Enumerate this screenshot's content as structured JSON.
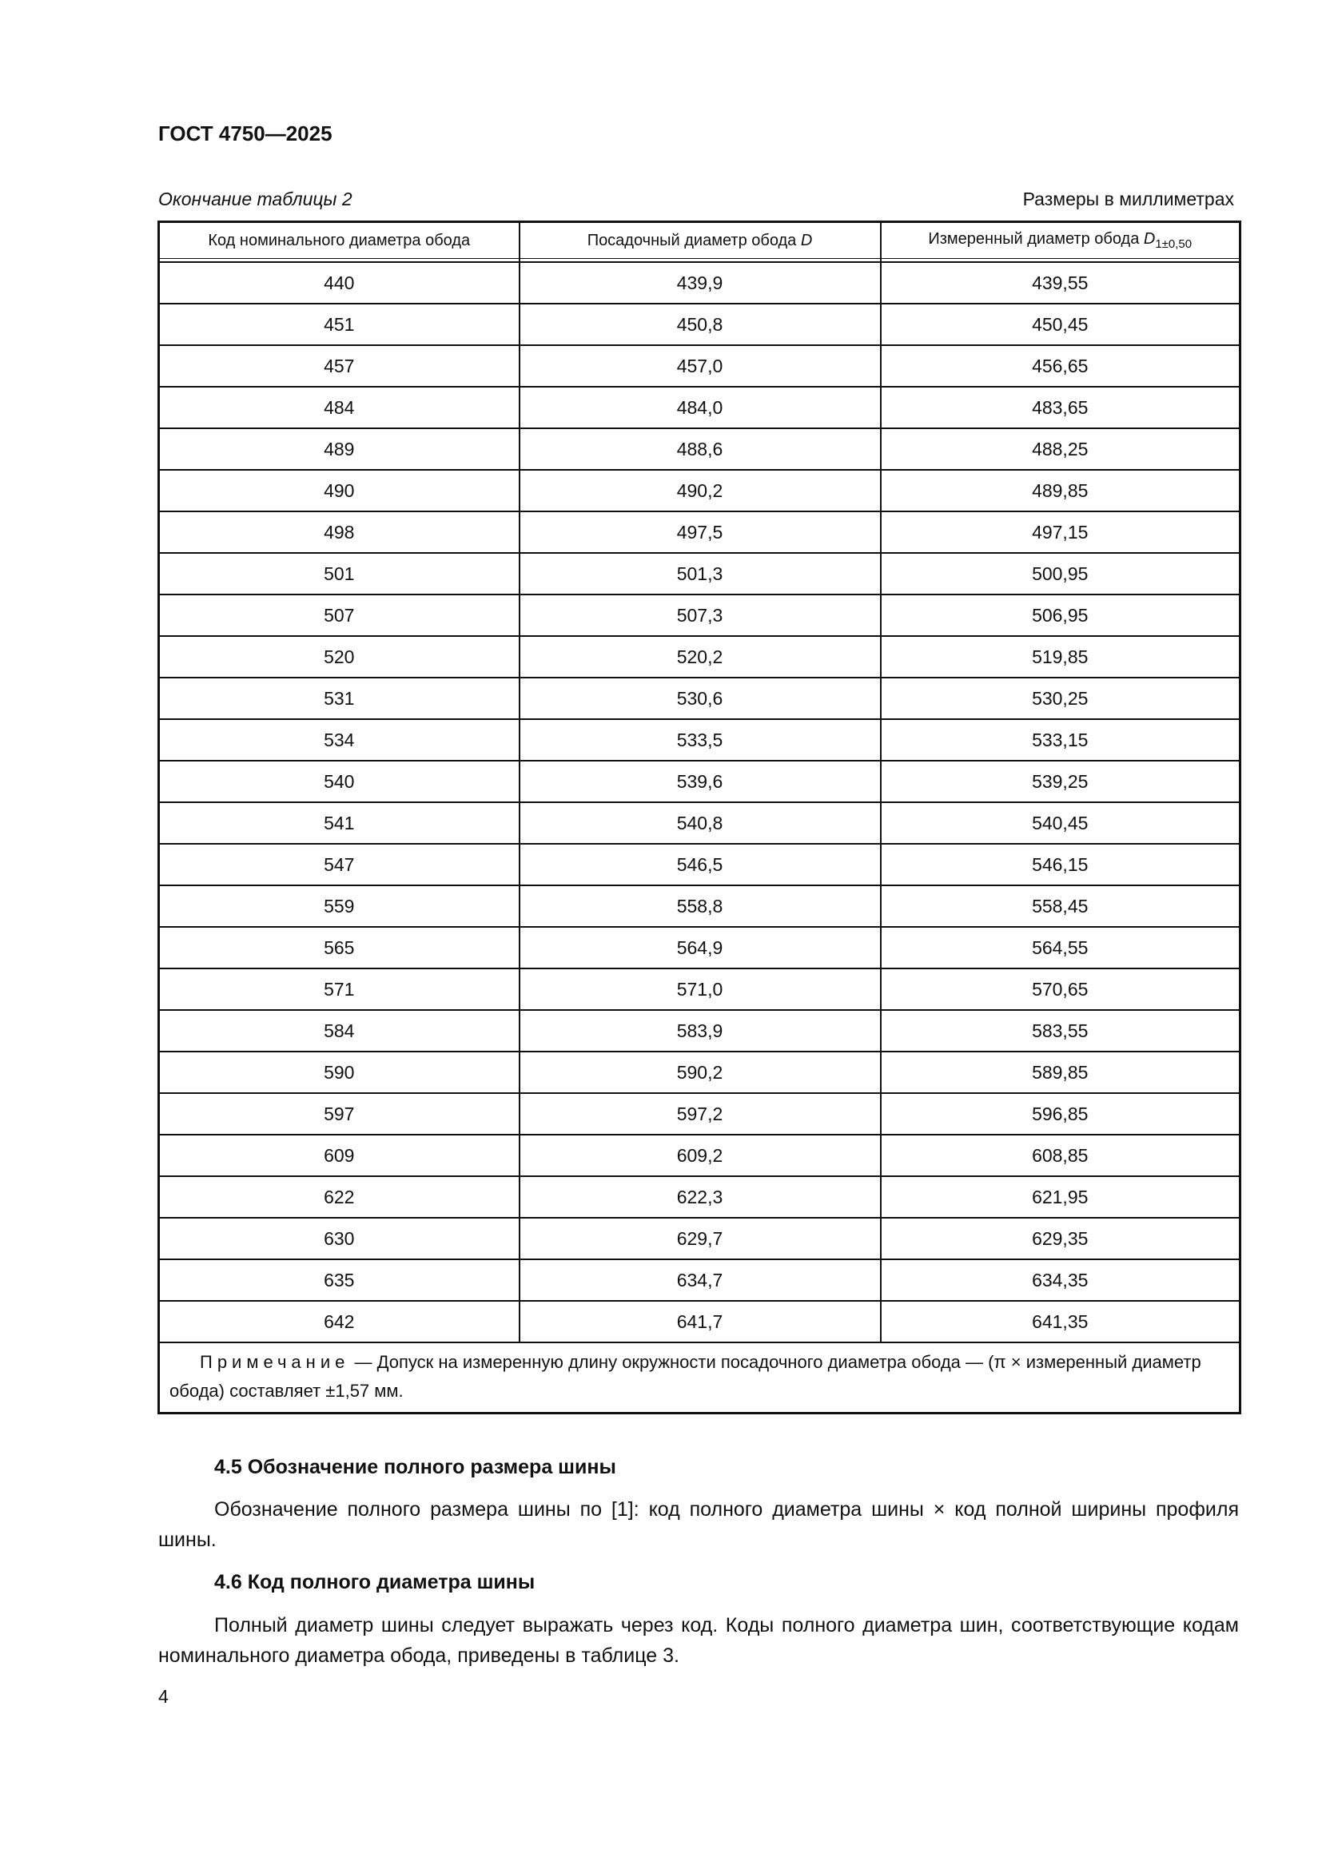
{
  "header": {
    "doc_title": "ГОСТ 4750—2025"
  },
  "table": {
    "caption": "Окончание таблицы 2",
    "units": "Размеры в миллиметрах",
    "columns": [
      "Код номинального диаметра обода",
      "Посадочный диаметр обода ",
      "Измеренный диаметр обода "
    ],
    "col2_symbol": "D",
    "col3_symbol": "D",
    "col3_subscript": "1±0,50",
    "rows": [
      [
        "440",
        "439,9",
        "439,55"
      ],
      [
        "451",
        "450,8",
        "450,45"
      ],
      [
        "457",
        "457,0",
        "456,65"
      ],
      [
        "484",
        "484,0",
        "483,65"
      ],
      [
        "489",
        "488,6",
        "488,25"
      ],
      [
        "490",
        "490,2",
        "489,85"
      ],
      [
        "498",
        "497,5",
        "497,15"
      ],
      [
        "501",
        "501,3",
        "500,95"
      ],
      [
        "507",
        "507,3",
        "506,95"
      ],
      [
        "520",
        "520,2",
        "519,85"
      ],
      [
        "531",
        "530,6",
        "530,25"
      ],
      [
        "534",
        "533,5",
        "533,15"
      ],
      [
        "540",
        "539,6",
        "539,25"
      ],
      [
        "541",
        "540,8",
        "540,45"
      ],
      [
        "547",
        "546,5",
        "546,15"
      ],
      [
        "559",
        "558,8",
        "558,45"
      ],
      [
        "565",
        "564,9",
        "564,55"
      ],
      [
        "571",
        "571,0",
        "570,65"
      ],
      [
        "584",
        "583,9",
        "583,55"
      ],
      [
        "590",
        "590,2",
        "589,85"
      ],
      [
        "597",
        "597,2",
        "596,85"
      ],
      [
        "609",
        "609,2",
        "608,85"
      ],
      [
        "622",
        "622,3",
        "621,95"
      ],
      [
        "630",
        "629,7",
        "629,35"
      ],
      [
        "635",
        "634,7",
        "634,35"
      ],
      [
        "642",
        "641,7",
        "641,35"
      ]
    ],
    "note_label": "Примечание",
    "note_text": " — Допуск на измеренную длину окружности посадочного диаметра обода — (π × измеренный диаметр обода) составляет ±1,57 мм."
  },
  "sections": [
    {
      "heading": "4.5  Обозначение полного размера шины",
      "text": "Обозначение полного размера шины по [1]: код полного диаметра шины × код полной ширины профиля шины."
    },
    {
      "heading": "4.6  Код полного диаметра шины",
      "text": "Полный диаметр шины следует выражать через код. Коды полного диаметра шин, соответствующие кодам номинального диаметра обода, приведены в таблице 3."
    }
  ],
  "footer": {
    "page_number": "4"
  }
}
